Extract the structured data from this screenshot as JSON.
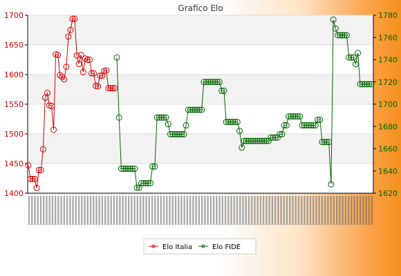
{
  "chart_data": {
    "type": "line",
    "title": "Grafico Elo",
    "xlabel": "",
    "ylabel": "",
    "y_left": {
      "range": [
        1400,
        1700
      ],
      "ticks": [
        1400,
        1450,
        1500,
        1550,
        1600,
        1650,
        1700
      ],
      "color": "#d40000"
    },
    "y_right": {
      "range": [
        1620,
        1780
      ],
      "ticks": [
        1620,
        1640,
        1660,
        1680,
        1700,
        1720,
        1740,
        1760,
        1780
      ],
      "color": "#006600"
    },
    "grid": "horizontal bands",
    "legend_position": "bottom",
    "x_tick_labels_note": "dense rotated date labels, illegible",
    "series": [
      {
        "name": "Elo Italia",
        "axis": "left",
        "color": "#d40000",
        "values": [
          1447,
          1424,
          1424,
          1424,
          1409,
          1439,
          1439,
          1474,
          1561,
          1569,
          1548,
          1547,
          1507,
          1634,
          1633,
          1599,
          1596,
          1592,
          1613,
          1664,
          1675,
          1694,
          1694,
          1632,
          1618,
          1633,
          1604,
          1627,
          1625,
          1625,
          1602,
          1602,
          1581,
          1580,
          1598,
          1598,
          1606,
          1607,
          1577,
          1577,
          1577,
          1577
        ]
      },
      {
        "name": "Elo FIDE",
        "axis": "right",
        "color": "#006600",
        "values": [
          1742,
          1688,
          1642,
          1642,
          1642,
          1642,
          1642,
          1642,
          1642,
          1625,
          1625,
          1629,
          1629,
          1629,
          1629,
          1629,
          1644,
          1644,
          1688,
          1688,
          1688,
          1688,
          1688,
          1682,
          1673,
          1673,
          1673,
          1673,
          1673,
          1673,
          1673,
          1681,
          1695,
          1695,
          1695,
          1695,
          1695,
          1695,
          1695,
          1720,
          1720,
          1720,
          1720,
          1720,
          1720,
          1720,
          1720,
          1712,
          1712,
          1684,
          1684,
          1684,
          1684,
          1684,
          1684,
          1676,
          1661,
          1667,
          1667,
          1667,
          1667,
          1667,
          1667,
          1667,
          1667,
          1667,
          1667,
          1667,
          1667,
          1670,
          1670,
          1670,
          1670,
          1673,
          1673,
          1681,
          1681,
          1689,
          1689,
          1689,
          1689,
          1689,
          1689,
          1681,
          1681,
          1681,
          1681,
          1681,
          1681,
          1681,
          1686,
          1686,
          1666,
          1666,
          1666,
          1666,
          1628,
          1776,
          1768,
          1762,
          1762,
          1762,
          1762,
          1762,
          1742,
          1742,
          1742,
          1736,
          1746,
          1718,
          1718,
          1718,
          1718,
          1718,
          1718
        ]
      }
    ]
  }
}
